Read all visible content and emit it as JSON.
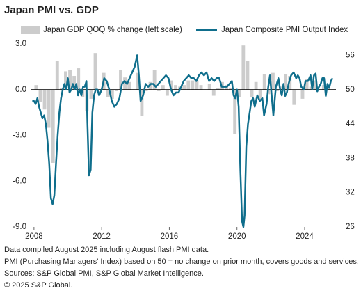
{
  "chart_data": {
    "type": "bar-line",
    "title": "Japan PMI vs. GDP",
    "xlim": [
      2007.8,
      2025.85
    ],
    "xticks": [
      2008,
      2012,
      2016,
      2020,
      2024
    ],
    "ylim": [
      -9,
      3
    ],
    "yticks": [
      {
        "value": 3,
        "label": "3.0"
      },
      {
        "value": 0,
        "label": "0.0"
      },
      {
        "value": -3,
        "label": "-3.0"
      },
      {
        "value": -6,
        "label": "-6.0"
      },
      {
        "value": -9,
        "label": "-9.0"
      }
    ],
    "y2lim": [
      26,
      58
    ],
    "y2ticks": [
      26,
      32,
      38,
      44,
      50,
      56
    ],
    "grid": false,
    "legend": "top",
    "series": [
      {
        "name": "Japan GDP QOQ % change (left scale)",
        "color": "#cccccc",
        "axis": "y",
        "x": [
          2008.125,
          2008.375,
          2008.625,
          2008.875,
          2009.125,
          2009.375,
          2009.625,
          2009.875,
          2010.125,
          2010.375,
          2010.625,
          2010.875,
          2011.125,
          2011.375,
          2011.625,
          2011.875,
          2012.125,
          2012.375,
          2012.625,
          2012.875,
          2013.125,
          2013.375,
          2013.625,
          2013.875,
          2014.125,
          2014.375,
          2014.625,
          2014.875,
          2015.125,
          2015.375,
          2015.625,
          2015.875,
          2016.125,
          2016.375,
          2016.625,
          2016.875,
          2017.125,
          2017.375,
          2017.625,
          2017.875,
          2018.125,
          2018.375,
          2018.625,
          2018.875,
          2019.125,
          2019.375,
          2019.625,
          2019.875,
          2020.125,
          2020.375,
          2020.625,
          2020.875,
          2021.125,
          2021.375,
          2021.625,
          2021.875,
          2022.125,
          2022.375,
          2022.625,
          2022.875,
          2023.125,
          2023.375,
          2023.625,
          2023.875,
          2024.125,
          2024.375,
          2024.625,
          2024.875,
          2025.125,
          2025.375
        ],
        "values": [
          0.3,
          -0.8,
          -1.3,
          -2.5,
          -4.8,
          1.9,
          0.1,
          1.2,
          1.3,
          0.9,
          1.4,
          -0.5,
          -1.4,
          -0.6,
          2.4,
          0.0,
          1.1,
          -0.5,
          -0.6,
          -0.1,
          1.3,
          0.8,
          0.5,
          0.0,
          1.1,
          -1.7,
          -0.1,
          0.5,
          1.3,
          -0.1,
          0.3,
          -0.4,
          0.6,
          0.3,
          0.2,
          0.3,
          0.6,
          0.6,
          0.6,
          0.3,
          0.0,
          0.4,
          -0.4,
          0.1,
          0.5,
          0.3,
          0.1,
          -2.9,
          -0.5,
          2.9,
          1.9,
          -0.5,
          0.5,
          -0.6,
          1.0,
          -0.3,
          1.1,
          -0.1,
          0.2,
          1.0,
          0.9,
          -1.0,
          0.0,
          -0.6,
          0.7,
          0.2,
          0.6,
          0.0,
          0.3,
          0.2
        ]
      },
      {
        "name": "Japan Composite PMI Output Index",
        "color": "#0f6e8c",
        "axis": "y2",
        "x": [
          2007.9,
          2008.0,
          2008.1,
          2008.2,
          2008.3,
          2008.4,
          2008.5,
          2008.6,
          2008.7,
          2008.8,
          2008.9,
          2009.0,
          2009.1,
          2009.2,
          2009.3,
          2009.4,
          2009.5,
          2009.6,
          2009.7,
          2009.8,
          2009.9,
          2010.0,
          2010.1,
          2010.2,
          2010.3,
          2010.4,
          2010.5,
          2010.6,
          2010.7,
          2010.8,
          2010.9,
          2011.0,
          2011.1,
          2011.15,
          2011.25,
          2011.35,
          2011.45,
          2011.55,
          2011.65,
          2011.75,
          2011.85,
          2012.0,
          2012.15,
          2012.3,
          2012.45,
          2012.6,
          2012.75,
          2012.9,
          2013.05,
          2013.2,
          2013.35,
          2013.5,
          2013.65,
          2013.8,
          2013.95,
          2014.1,
          2014.2,
          2014.3,
          2014.45,
          2014.6,
          2014.75,
          2014.9,
          2015.05,
          2015.2,
          2015.35,
          2015.5,
          2015.65,
          2015.8,
          2015.95,
          2016.1,
          2016.25,
          2016.4,
          2016.55,
          2016.7,
          2016.85,
          2017.0,
          2017.15,
          2017.3,
          2017.45,
          2017.6,
          2017.75,
          2017.9,
          2018.05,
          2018.2,
          2018.35,
          2018.5,
          2018.65,
          2018.8,
          2018.95,
          2019.1,
          2019.25,
          2019.4,
          2019.55,
          2019.7,
          2019.8,
          2019.9,
          2020.0,
          2020.1,
          2020.2,
          2020.3,
          2020.38,
          2020.45,
          2020.55,
          2020.65,
          2020.75,
          2020.85,
          2020.95,
          2021.05,
          2021.2,
          2021.35,
          2021.5,
          2021.6,
          2021.75,
          2021.85,
          2021.95,
          2022.05,
          2022.15,
          2022.3,
          2022.45,
          2022.55,
          2022.65,
          2022.75,
          2022.85,
          2022.95,
          2023.05,
          2023.2,
          2023.35,
          2023.5,
          2023.6,
          2023.7,
          2023.8,
          2023.95,
          2024.05,
          2024.2,
          2024.35,
          2024.45,
          2024.55,
          2024.65,
          2024.75,
          2024.85,
          2024.95,
          2025.05,
          2025.15,
          2025.25,
          2025.35,
          2025.45,
          2025.55,
          2025.65
        ],
        "values": [
          48,
          48,
          47.5,
          48.5,
          47,
          46,
          45,
          45.5,
          44,
          41,
          37,
          31,
          30,
          31.5,
          37,
          42,
          46,
          48.5,
          50,
          51,
          50,
          52,
          49.5,
          50,
          51,
          50,
          51,
          49,
          50,
          49,
          50.5,
          50.5,
          51.5,
          45,
          35,
          36,
          46,
          49,
          50,
          50,
          49,
          50,
          52,
          51.5,
          50,
          48,
          47,
          47.5,
          48.5,
          51,
          51.5,
          51,
          52,
          53,
          54,
          56,
          52.5,
          48,
          49,
          51,
          50.5,
          51,
          51,
          50.5,
          51,
          51.5,
          52,
          52.5,
          52,
          50,
          49,
          49.5,
          49.5,
          50.5,
          51.5,
          52,
          52.5,
          52,
          52,
          51.5,
          52.5,
          53,
          52.5,
          53,
          51.5,
          52,
          51.5,
          52,
          52,
          50.5,
          50.5,
          50.5,
          51,
          51.5,
          49,
          48.5,
          50,
          47,
          36,
          27,
          26,
          28,
          40,
          44,
          46,
          48,
          48.5,
          47,
          49,
          48,
          48.5,
          45.5,
          47.5,
          50.5,
          52.5,
          49,
          45.5,
          50.5,
          52,
          50,
          49,
          51,
          48.9,
          49.5,
          51,
          52.5,
          53,
          52,
          52.5,
          52,
          50.5,
          50,
          51.5,
          51.5,
          52.5,
          50,
          52.5,
          52.8,
          49.7,
          50.5,
          51,
          52,
          52,
          48.9,
          51,
          50.3,
          51.5,
          52
        ]
      }
    ],
    "notes": [
      "Data compiled August 2025 including August flash PMI data.",
      "PMI (Purchasing Managers' Index) based on 50 = no change on prior month, covers goods and services.",
      "Sources: S&P Global PMI, S&P Global Market Intelligence.",
      "© 2025 S&P Global."
    ]
  }
}
